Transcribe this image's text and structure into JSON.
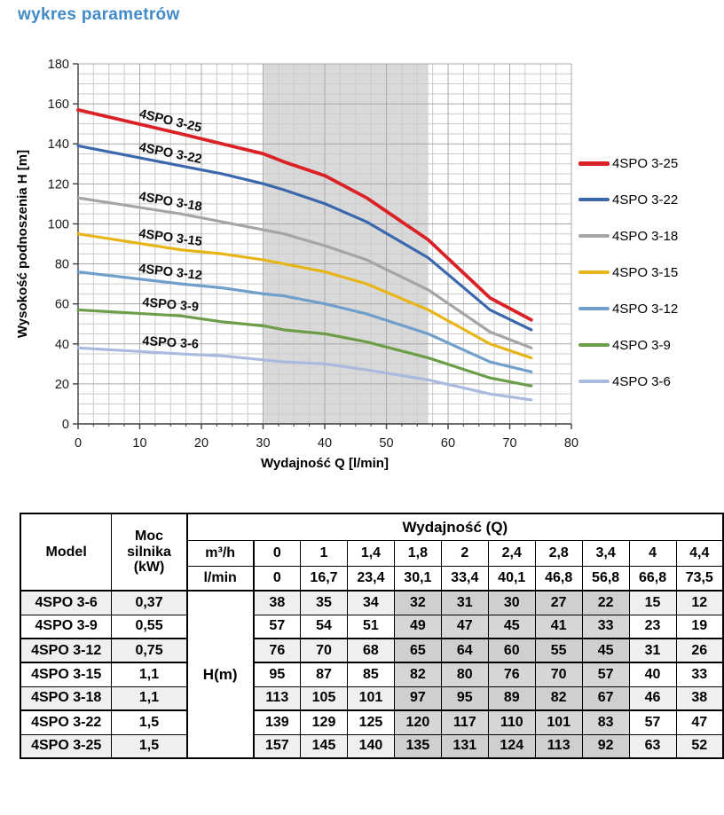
{
  "page": {
    "title": "wykres parametrów",
    "title_color": "#4289c7"
  },
  "chart_data": {
    "type": "line",
    "title": "",
    "xlabel": "Wydajność Q [l/min]",
    "ylabel": "Wysokość podnoszenia H [m]",
    "xlim": [
      0,
      80
    ],
    "ylim": [
      0,
      180
    ],
    "x_major_ticks": [
      0,
      10,
      20,
      30,
      40,
      50,
      60,
      70,
      80
    ],
    "y_major_ticks": [
      0,
      20,
      40,
      60,
      80,
      100,
      120,
      140,
      160,
      180
    ],
    "x_minor_step": 2.5,
    "y_minor_step": 5,
    "grid": true,
    "legend_position": "right",
    "band": {
      "from": 30.1,
      "to": 56.8,
      "color": "#d9d9d9"
    },
    "x": [
      0,
      16.7,
      23.4,
      30.1,
      33.4,
      40.1,
      46.8,
      56.8,
      66.8,
      73.5
    ],
    "series": [
      {
        "name": "4SPO 3-25",
        "color": "#db2026",
        "values": [
          157,
          145,
          140,
          135,
          131,
          124,
          113,
          92,
          63,
          52
        ]
      },
      {
        "name": "4SPO 3-22",
        "color": "#3a67ad",
        "values": [
          139,
          129,
          125,
          120,
          117,
          110,
          101,
          83,
          57,
          47
        ]
      },
      {
        "name": "4SPO 3-18",
        "color": "#a3a5a7",
        "values": [
          113,
          105,
          101,
          97,
          95,
          89,
          82,
          67,
          46,
          38
        ]
      },
      {
        "name": "4SPO 3-15",
        "color": "#e7b518",
        "values": [
          95,
          87,
          85,
          82,
          80,
          76,
          70,
          57,
          40,
          33
        ]
      },
      {
        "name": "4SPO 3-12",
        "color": "#6f9fca",
        "values": [
          76,
          70,
          68,
          65,
          64,
          60,
          55,
          45,
          31,
          26
        ]
      },
      {
        "name": "4SPO 3-9",
        "color": "#6c9e49",
        "values": [
          57,
          54,
          51,
          49,
          47,
          45,
          41,
          33,
          23,
          19
        ]
      },
      {
        "name": "4SPO 3-6",
        "color": "#a9bade",
        "values": [
          38,
          35,
          34,
          32,
          31,
          30,
          27,
          22,
          15,
          12
        ]
      }
    ]
  },
  "table": {
    "header": {
      "model": "Model",
      "power": "Moc silnika (kW)",
      "q_group": "Wydajność (Q)",
      "unit_m3h": "m³/h",
      "unit_lmin": "l/min",
      "h_label": "H(m)",
      "m3h_values": [
        "0",
        "1",
        "1,4",
        "1,8",
        "2",
        "2,4",
        "2,8",
        "3,4",
        "4",
        "4,4"
      ],
      "lmin_values": [
        "0",
        "16,7",
        "23,4",
        "30,1",
        "33,4",
        "40,1",
        "46,8",
        "56,8",
        "66,8",
        "73,5"
      ]
    },
    "highlight_cols": [
      3,
      4,
      5,
      6,
      7
    ],
    "thick_after_rows": [
      1,
      2,
      4
    ],
    "rows": [
      {
        "model": "4SPO 3-6",
        "power": "0,37",
        "values": [
          38,
          35,
          34,
          32,
          31,
          30,
          27,
          22,
          15,
          12
        ]
      },
      {
        "model": "4SPO 3-9",
        "power": "0,55",
        "values": [
          57,
          54,
          51,
          49,
          47,
          45,
          41,
          33,
          23,
          19
        ]
      },
      {
        "model": "4SPO 3-12",
        "power": "0,75",
        "values": [
          76,
          70,
          68,
          65,
          64,
          60,
          55,
          45,
          31,
          26
        ]
      },
      {
        "model": "4SPO 3-15",
        "power": "1,1",
        "values": [
          95,
          87,
          85,
          82,
          80,
          76,
          70,
          57,
          40,
          33
        ]
      },
      {
        "model": "4SPO 3-18",
        "power": "1,1",
        "values": [
          113,
          105,
          101,
          97,
          95,
          89,
          82,
          67,
          46,
          38
        ]
      },
      {
        "model": "4SPO 3-22",
        "power": "1,5",
        "values": [
          139,
          129,
          125,
          120,
          117,
          110,
          101,
          83,
          57,
          47
        ]
      },
      {
        "model": "4SPO 3-25",
        "power": "1,5",
        "values": [
          157,
          145,
          140,
          135,
          131,
          124,
          113,
          92,
          63,
          52
        ]
      }
    ]
  }
}
